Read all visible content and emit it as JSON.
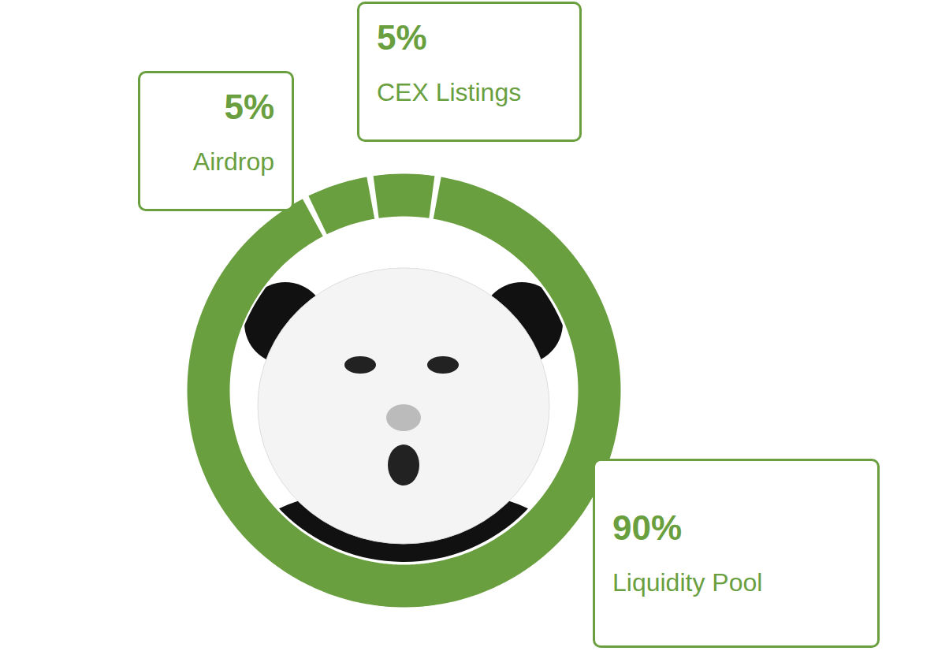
{
  "chart_data": {
    "type": "pie",
    "categories": [
      "Airdrop",
      "CEX Listings",
      "Liquidity Pool"
    ],
    "values": [
      5,
      5,
      90
    ],
    "value_labels": [
      "5%",
      "5%",
      "90%"
    ],
    "color": "#6a9f3f",
    "data_labels": true
  }
}
